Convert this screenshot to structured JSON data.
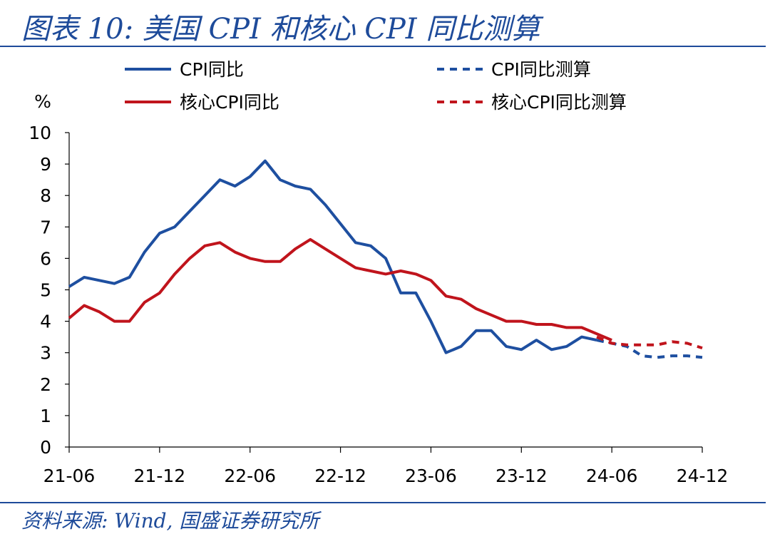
{
  "header": {
    "title": "图表 10:  美国 CPI 和核心 CPI 同比测算"
  },
  "footer": {
    "source": "资料来源:  Wind,  国盛证券研究所"
  },
  "chart_data": {
    "type": "line",
    "ylabel": "%",
    "ylim": [
      0,
      10
    ],
    "yticks": [
      0,
      1,
      2,
      3,
      4,
      5,
      6,
      7,
      8,
      9,
      10
    ],
    "x_start": "2021-06",
    "x_end": "2024-12",
    "xtick_labels": [
      "21-06",
      "21-12",
      "22-06",
      "22-12",
      "23-06",
      "23-12",
      "24-06",
      "24-12"
    ],
    "colors": {
      "cpi": "#1e4fa0",
      "core": "#c0141c"
    },
    "series": [
      {
        "name": "CPI同比",
        "color": "#1e4fa0",
        "dashed": false,
        "x": [
          "2021-06",
          "2021-07",
          "2021-08",
          "2021-09",
          "2021-10",
          "2021-11",
          "2021-12",
          "2022-01",
          "2022-02",
          "2022-03",
          "2022-04",
          "2022-05",
          "2022-06",
          "2022-07",
          "2022-08",
          "2022-09",
          "2022-10",
          "2022-11",
          "2022-12",
          "2023-01",
          "2023-02",
          "2023-03",
          "2023-04",
          "2023-05",
          "2023-06",
          "2023-07",
          "2023-08",
          "2023-09",
          "2023-10",
          "2023-11",
          "2023-12",
          "2024-01",
          "2024-02",
          "2024-03",
          "2024-04",
          "2024-05"
        ],
        "values": [
          5.1,
          5.4,
          5.3,
          5.2,
          5.4,
          6.2,
          6.8,
          7.0,
          7.5,
          8.0,
          8.5,
          8.3,
          8.6,
          9.1,
          8.5,
          8.3,
          8.2,
          7.7,
          7.1,
          6.5,
          6.4,
          6.0,
          4.9,
          4.9,
          4.0,
          3.0,
          3.2,
          3.7,
          3.7,
          3.2,
          3.1,
          3.4,
          3.1,
          3.2,
          3.5,
          3.4
        ]
      },
      {
        "name": "核心CPI同比",
        "color": "#c0141c",
        "dashed": false,
        "x": [
          "2021-06",
          "2021-07",
          "2021-08",
          "2021-09",
          "2021-10",
          "2021-11",
          "2021-12",
          "2022-01",
          "2022-02",
          "2022-03",
          "2022-04",
          "2022-05",
          "2022-06",
          "2022-07",
          "2022-08",
          "2022-09",
          "2022-10",
          "2022-11",
          "2022-12",
          "2023-01",
          "2023-02",
          "2023-03",
          "2023-04",
          "2023-05",
          "2023-06",
          "2023-07",
          "2023-08",
          "2023-09",
          "2023-10",
          "2023-11",
          "2023-12",
          "2024-01",
          "2024-02",
          "2024-03",
          "2024-04",
          "2024-05",
          "2024-06"
        ],
        "values": [
          4.1,
          4.5,
          4.3,
          4.0,
          4.0,
          4.6,
          4.9,
          5.5,
          6.0,
          6.4,
          6.5,
          6.2,
          6.0,
          5.9,
          5.9,
          6.3,
          6.6,
          6.3,
          6.0,
          5.7,
          5.6,
          5.5,
          5.6,
          5.5,
          5.3,
          4.8,
          4.7,
          4.4,
          4.2,
          4.0,
          4.0,
          3.9,
          3.9,
          3.8,
          3.8,
          3.6,
          3.4
        ]
      },
      {
        "name": "CPI同比测算",
        "color": "#1e4fa0",
        "dashed": true,
        "x": [
          "2024-05",
          "2024-06",
          "2024-07",
          "2024-08",
          "2024-09",
          "2024-10",
          "2024-11",
          "2024-12"
        ],
        "values": [
          3.4,
          3.3,
          3.2,
          2.9,
          2.85,
          2.9,
          2.9,
          2.85
        ]
      },
      {
        "name": "核心CPI同比测算",
        "color": "#c0141c",
        "dashed": true,
        "x": [
          "2024-05",
          "2024-06",
          "2024-07",
          "2024-08",
          "2024-09",
          "2024-10",
          "2024-11",
          "2024-12"
        ],
        "values": [
          3.5,
          3.3,
          3.25,
          3.25,
          3.25,
          3.35,
          3.3,
          3.15
        ]
      }
    ],
    "legend": {
      "placement": "top"
    },
    "grid": false
  }
}
